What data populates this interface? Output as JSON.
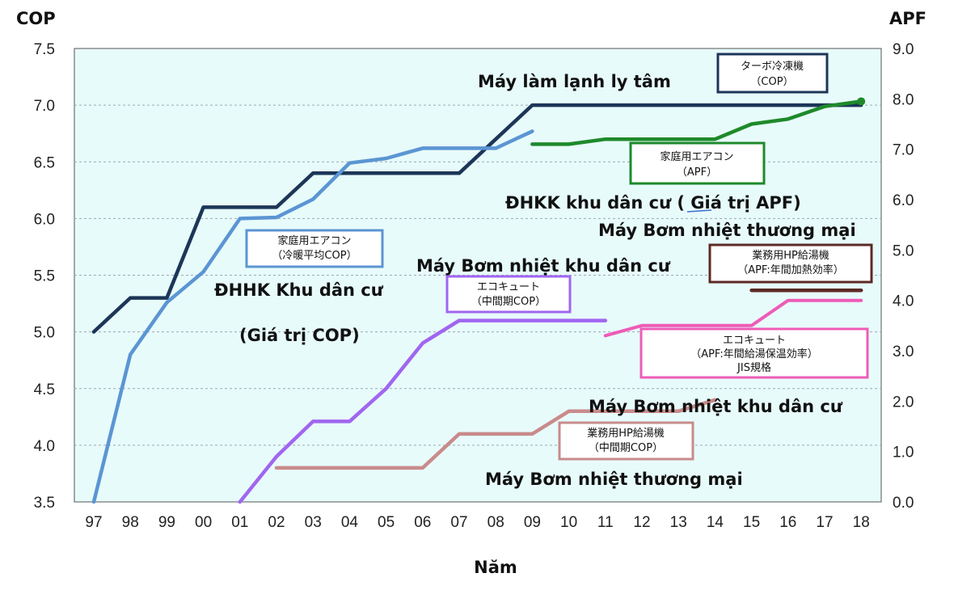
{
  "chart_data": {
    "type": "line",
    "title": "",
    "xlabel": "Năm",
    "ylabel_left": "COP",
    "ylabel_right": "APF",
    "ylim_left": [
      3.5,
      7.5
    ],
    "ylim_right": [
      0.0,
      9.0
    ],
    "yticks_left": [
      "3.5",
      "4.0",
      "4.5",
      "5.0",
      "5.5",
      "6.0",
      "6.5",
      "7.0",
      "7.5"
    ],
    "yticks_right": [
      "0.0",
      "1.0",
      "2.0",
      "3.0",
      "4.0",
      "5.0",
      "6.0",
      "7.0",
      "8.0",
      "9.0"
    ],
    "categories": [
      "97",
      "98",
      "99",
      "00",
      "01",
      "02",
      "03",
      "04",
      "05",
      "06",
      "07",
      "08",
      "09",
      "10",
      "11",
      "12",
      "13",
      "14",
      "15",
      "16",
      "17",
      "18"
    ],
    "colors": {
      "navy": "#1c3658",
      "blue": "#5b95d3",
      "green": "#1e8a2b",
      "purple": "#a066f0",
      "pink": "#ee5cb7",
      "rose": "#c98b8b",
      "brown": "#5c2a24",
      "plot_bg": "#e8fbfb",
      "grid": "#9aa8b3"
    },
    "series": [
      {
        "name": "ターボ冷凍機 (COP)",
        "axis": "left",
        "color": "navy",
        "width": 4.5,
        "values": [
          5.0,
          5.3,
          5.3,
          6.1,
          6.1,
          6.1,
          6.4,
          6.4,
          6.4,
          6.4,
          6.4,
          6.7,
          7.0,
          7.0,
          7.0,
          7.0,
          7.0,
          7.0,
          7.0,
          7.0,
          7.0,
          7.0
        ]
      },
      {
        "name": "家庭用エアコン 冷暖平均COP",
        "axis": "left",
        "color": "blue",
        "width": 4.5,
        "values": [
          3.5,
          4.8,
          5.26,
          5.53,
          6.0,
          6.01,
          6.17,
          6.49,
          6.53,
          6.62,
          6.62,
          6.62,
          6.77,
          null,
          null,
          null,
          null,
          null,
          null,
          null,
          null,
          null
        ]
      },
      {
        "name": "家庭用エアコン (APF)",
        "axis": "right",
        "color": "green",
        "width": 4.5,
        "values": [
          null,
          null,
          null,
          null,
          null,
          null,
          null,
          null,
          null,
          null,
          null,
          null,
          7.1,
          7.1,
          7.2,
          7.2,
          7.2,
          7.2,
          7.5,
          7.6,
          7.85,
          7.95
        ]
      },
      {
        "name": "エコキュート (中間期COP)",
        "axis": "left",
        "color": "purple",
        "width": 4.5,
        "values": [
          null,
          null,
          null,
          null,
          3.5,
          3.9,
          4.21,
          4.21,
          4.5,
          4.9,
          5.1,
          5.1,
          5.1,
          5.1,
          5.1,
          null,
          null,
          null,
          null,
          null,
          null,
          null
        ]
      },
      {
        "name": "エコキュート (APF:年間給湯保温効率) JIS規格",
        "axis": "right",
        "color": "pink",
        "width": 4.0,
        "values": [
          null,
          null,
          null,
          null,
          null,
          null,
          null,
          null,
          null,
          null,
          null,
          null,
          null,
          null,
          3.3,
          3.5,
          3.5,
          3.5,
          3.5,
          4.0,
          4.0,
          4.0
        ]
      },
      {
        "name": "業務用HP給湯機 (中間期COP)",
        "axis": "left",
        "color": "rose",
        "width": 4.5,
        "values": [
          null,
          null,
          null,
          null,
          null,
          3.8,
          3.8,
          3.8,
          3.8,
          3.8,
          4.1,
          4.1,
          4.1,
          4.3,
          4.3,
          4.3,
          4.3,
          4.4,
          null,
          null,
          null,
          null
        ]
      },
      {
        "name": "業務用HP給湯機 (APF:年間加熱効率)",
        "axis": "right",
        "color": "brown",
        "width": 4.5,
        "values": [
          null,
          null,
          null,
          null,
          null,
          null,
          null,
          null,
          null,
          null,
          null,
          null,
          null,
          null,
          null,
          null,
          null,
          null,
          4.2,
          4.2,
          4.2,
          4.2
        ]
      }
    ],
    "annotations": [
      {
        "text": "Máy làm lạnh ly tâm"
      },
      {
        "text": "ĐHKK khu dân cư ( Giá trị APF)"
      },
      {
        "text": "Máy Bơm nhiệt thương mại"
      },
      {
        "text": "Máy Bơm nhiệt khu dân cư"
      },
      {
        "text": "ĐHHK Khu dân cư"
      },
      {
        "text": "(Giá trị COP)"
      },
      {
        "text": "Máy Bơm nhiệt khu dân cư"
      },
      {
        "text": "Máy Bơm nhiệt thương mại"
      }
    ],
    "label_boxes": [
      {
        "lines": [
          "ターボ冷凍機",
          "（COP）"
        ],
        "color": "navy"
      },
      {
        "lines": [
          "家庭用エアコン",
          "（APF）"
        ],
        "color": "green"
      },
      {
        "lines": [
          "家庭用エアコン",
          "（冷暖平均COP）"
        ],
        "color": "blue"
      },
      {
        "lines": [
          "業務用HP給湯機",
          "（APF:年間加熱効率）"
        ],
        "color": "brown"
      },
      {
        "lines": [
          "エコキュート",
          "（中間期COP）"
        ],
        "color": "purple"
      },
      {
        "lines": [
          "エコキュート",
          "（APF:年間給湯保温効率）",
          "JIS規格"
        ],
        "color": "pink"
      },
      {
        "lines": [
          "業務用HP給湯機",
          "（中間期COP）"
        ],
        "color": "rose"
      }
    ]
  }
}
